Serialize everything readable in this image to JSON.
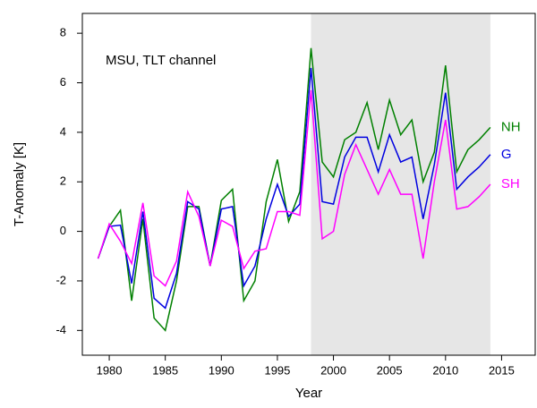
{
  "chart_data": {
    "type": "line",
    "annotation": "MSU, TLT channel",
    "xlabel": "Year",
    "ylabel": "T-Anomaly [K]",
    "x": [
      1979,
      1980,
      1981,
      1982,
      1983,
      1984,
      1985,
      1986,
      1987,
      1988,
      1989,
      1990,
      1991,
      1992,
      1993,
      1994,
      1995,
      1996,
      1997,
      1998,
      1999,
      2000,
      2001,
      2002,
      2003,
      2004,
      2005,
      2006,
      2007,
      2008,
      2009,
      2010,
      2011,
      2012,
      2013,
      2014
    ],
    "series": [
      {
        "name": "NH",
        "color": "#008000",
        "values": [
          -1.1,
          0.2,
          0.85,
          -2.8,
          0.5,
          -3.5,
          -4.0,
          -2.0,
          1.0,
          1.0,
          -1.4,
          1.25,
          1.7,
          -2.8,
          -2.0,
          1.2,
          2.9,
          0.4,
          1.6,
          7.4,
          2.8,
          2.2,
          3.7,
          4.0,
          5.2,
          3.3,
          5.3,
          3.9,
          4.5,
          2.0,
          3.2,
          6.7,
          2.4,
          3.3,
          3.7,
          4.2
        ]
      },
      {
        "name": "G",
        "color": "#0000e0",
        "values": [
          -1.1,
          0.2,
          0.25,
          -2.1,
          0.8,
          -2.7,
          -3.1,
          -1.7,
          1.2,
          0.9,
          -1.4,
          0.9,
          1.0,
          -2.2,
          -1.4,
          0.5,
          1.9,
          0.6,
          1.1,
          6.6,
          1.2,
          1.1,
          3.0,
          3.8,
          3.8,
          2.4,
          3.9,
          2.8,
          3.0,
          0.5,
          2.7,
          5.6,
          1.7,
          2.2,
          2.6,
          3.1
        ]
      },
      {
        "name": "SH",
        "color": "#ff00ff",
        "values": [
          -1.1,
          0.3,
          -0.4,
          -1.3,
          1.15,
          -1.8,
          -2.2,
          -1.2,
          1.6,
          0.6,
          -1.4,
          0.45,
          0.2,
          -1.5,
          -0.8,
          -0.7,
          0.8,
          0.8,
          0.65,
          5.7,
          -0.3,
          0.0,
          2.3,
          3.5,
          2.5,
          1.5,
          2.5,
          1.5,
          1.5,
          -1.1,
          2.0,
          4.5,
          0.9,
          1.0,
          1.4,
          1.9
        ]
      }
    ],
    "shaded_region": [
      1998,
      2014
    ],
    "xlim": [
      1977.6,
      2018
    ],
    "ylim": [
      -5,
      8.8
    ],
    "xticks": [
      1980,
      1985,
      1990,
      1995,
      2000,
      2005,
      2010,
      2015
    ],
    "yticks": [
      -4,
      -2,
      0,
      2,
      4,
      6,
      8
    ]
  }
}
